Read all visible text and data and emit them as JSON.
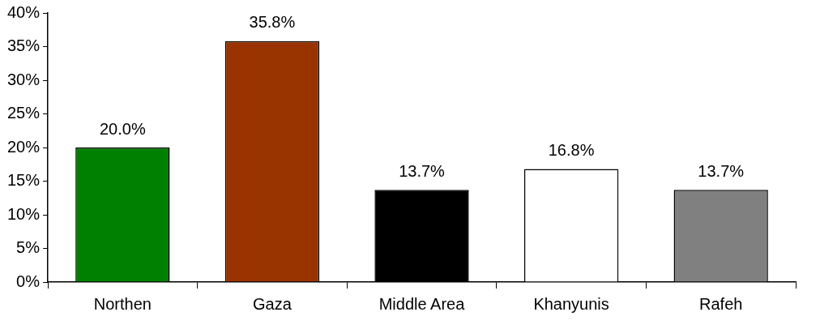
{
  "chart_data": {
    "type": "bar",
    "categories": [
      "Northen",
      "Gaza",
      "Middle Area",
      "Khanyunis",
      "Rafeh"
    ],
    "values": [
      20.0,
      35.8,
      13.7,
      16.8,
      13.7
    ],
    "colors": [
      "#008000",
      "#993300",
      "#000000",
      "#ffffff",
      "#808080"
    ],
    "value_labels": [
      "20.0%",
      "35.8%",
      "13.7%",
      "16.8%",
      "13.7%"
    ],
    "ylim": [
      0,
      40
    ],
    "yticks": [
      {
        "value": 0,
        "label": "0%"
      },
      {
        "value": 5,
        "label": "5%"
      },
      {
        "value": 10,
        "label": "10%"
      },
      {
        "value": 15,
        "label": "15%"
      },
      {
        "value": 20,
        "label": "20%"
      },
      {
        "value": 25,
        "label": "25%"
      },
      {
        "value": 30,
        "label": "30%"
      },
      {
        "value": 35,
        "label": "35%"
      },
      {
        "value": 40,
        "label": "40%"
      }
    ]
  }
}
